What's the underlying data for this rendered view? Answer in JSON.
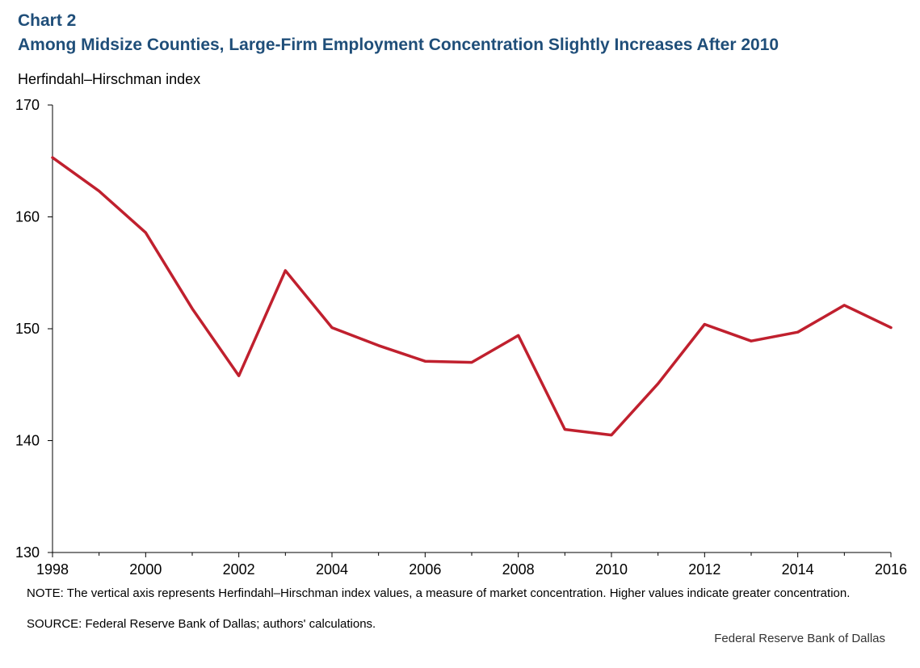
{
  "header": {
    "chart_number": "Chart 2",
    "title": "Among Midsize Counties, Large-Firm Employment Concentration Slightly Increases After 2010"
  },
  "footer": {
    "note": "NOTE: The vertical axis represents Herfindahl–Hirschman index values, a measure of market concentration. Higher values indicate greater concentration.",
    "source": "SOURCE: Federal Reserve Bank of Dallas; authors' calculations.",
    "credit": "Federal Reserve Bank of Dallas"
  },
  "colors": {
    "line": "#c0202e",
    "axis": "#000000",
    "title": "#1f4e79"
  },
  "chart_data": {
    "type": "line",
    "title": "Among Midsize Counties, Large-Firm Employment Concentration Slightly Increases After 2010",
    "xlabel": "",
    "ylabel": "Herfindahl–Hirschman index",
    "ylim": [
      130,
      170
    ],
    "xlim": [
      1998,
      2016
    ],
    "y_ticks": [
      130,
      140,
      150,
      160,
      170
    ],
    "x_ticks": [
      1998,
      2000,
      2002,
      2004,
      2006,
      2008,
      2010,
      2012,
      2014,
      2016
    ],
    "grid": false,
    "series": [
      {
        "name": "Herfindahl–Hirschman index",
        "x": [
          1998,
          1999,
          2000,
          2001,
          2002,
          2003,
          2004,
          2005,
          2006,
          2007,
          2008,
          2009,
          2010,
          2011,
          2012,
          2013,
          2014,
          2015,
          2016
        ],
        "values": [
          165.3,
          162.3,
          158.6,
          151.8,
          145.8,
          155.2,
          150.1,
          148.5,
          147.1,
          147.0,
          149.4,
          141.0,
          140.5,
          145.1,
          150.4,
          148.9,
          149.7,
          152.1,
          150.1
        ]
      }
    ]
  }
}
